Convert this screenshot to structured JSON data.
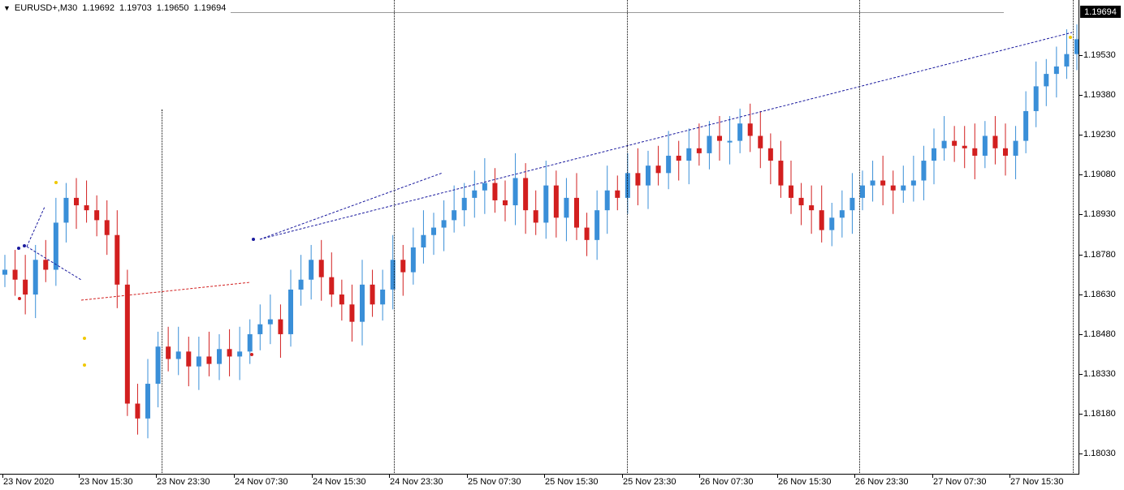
{
  "header": {
    "symbol": "EURUSD+,M30",
    "open": "1.19692",
    "high": "1.19703",
    "low": "1.19650",
    "close": "1.19694"
  },
  "current_price": "1.19694",
  "price_axis": [
    "1.19530",
    "1.19380",
    "1.19230",
    "1.19080",
    "1.18930",
    "1.18780",
    "1.18630",
    "1.18480",
    "1.18330",
    "1.18180",
    "1.18030"
  ],
  "time_axis": [
    "23 Nov 2020",
    "23 Nov 15:30",
    "23 Nov 23:30",
    "24 Nov 07:30",
    "24 Nov 15:30",
    "24 Nov 23:30",
    "25 Nov 07:30",
    "25 Nov 15:30",
    "25 Nov 23:30",
    "26 Nov 07:30",
    "26 Nov 15:30",
    "26 Nov 23:30",
    "27 Nov 07:30",
    "27 Nov 15:30"
  ],
  "colors": {
    "bull": "#3a8fd8",
    "bear": "#d21f1f",
    "trend_blue": "#1a1a9e",
    "trend_red": "#d21f1f",
    "marker_yellow": "#f0c800"
  },
  "chart_data": {
    "type": "candlestick",
    "ylim": [
      1.1795,
      1.1975
    ],
    "series_close": [
      1.1876,
      1.1872,
      1.1866,
      1.188,
      1.1876,
      1.1895,
      1.1905,
      1.1902,
      1.19,
      1.1896,
      1.189,
      1.187,
      1.1822,
      1.1816,
      1.183,
      1.1845,
      1.184,
      1.1843,
      1.1837,
      1.1841,
      1.1838,
      1.1844,
      1.1841,
      1.1843,
      1.185,
      1.1854,
      1.1856,
      1.185,
      1.1868,
      1.1872,
      1.188,
      1.1873,
      1.1866,
      1.1862,
      1.1855,
      1.187,
      1.1862,
      1.1868,
      1.188,
      1.1875,
      1.1885,
      1.189,
      1.1893,
      1.1896,
      1.19,
      1.1905,
      1.1908,
      1.1911,
      1.1904,
      1.1902,
      1.1913,
      1.19,
      1.1895,
      1.191,
      1.1897,
      1.1905,
      1.1893,
      1.1888,
      1.19,
      1.1908,
      1.1905,
      1.1915,
      1.191,
      1.1918,
      1.1915,
      1.1922,
      1.192,
      1.1925,
      1.1923,
      1.193,
      1.1928,
      1.1928,
      1.1935,
      1.193,
      1.1925,
      1.192,
      1.191,
      1.1905,
      1.1902,
      1.19,
      1.1892,
      1.1897,
      1.19,
      1.1905,
      1.191,
      1.1912,
      1.191,
      1.1908,
      1.191,
      1.1912,
      1.192,
      1.1925,
      1.1928,
      1.1926,
      1.1925,
      1.1922,
      1.193,
      1.1925,
      1.1922,
      1.1928,
      1.194,
      1.195,
      1.1955,
      1.1958,
      1.1963,
      1.1969
    ]
  }
}
